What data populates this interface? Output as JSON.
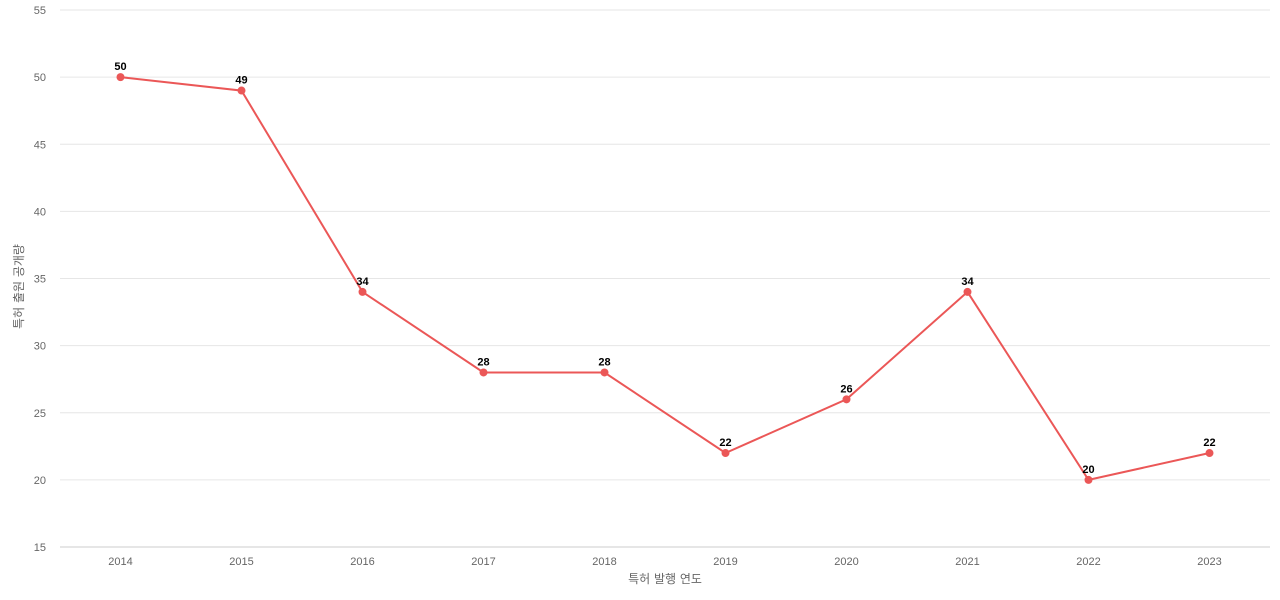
{
  "chart_data": {
    "type": "line",
    "title": "",
    "xlabel": "특허 발행 연도",
    "ylabel": "특허 출원 공개량",
    "categories": [
      "2014",
      "2015",
      "2016",
      "2017",
      "2018",
      "2019",
      "2020",
      "2021",
      "2022",
      "2023"
    ],
    "series": [
      {
        "values": [
          50,
          49,
          34,
          28,
          28,
          22,
          26,
          34,
          20,
          22
        ],
        "color": "#eb5757"
      }
    ],
    "ylim": [
      15,
      55
    ],
    "yticks": [
      15,
      20,
      25,
      30,
      35,
      40,
      45,
      50,
      55
    ],
    "grid": true,
    "legend": "none",
    "data_labels": true
  }
}
